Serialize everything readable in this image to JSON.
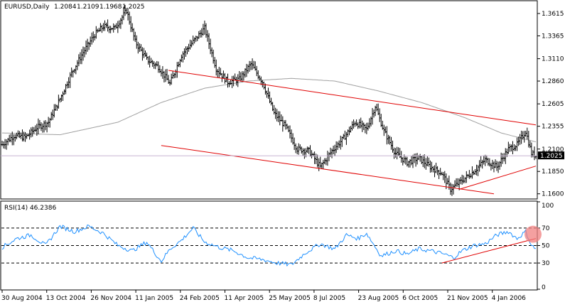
{
  "window": {
    "symbol_label": "EURUSD,Daily",
    "ohlc": [
      "1.2084",
      "1.2109",
      "1.1968",
      "1.2025"
    ],
    "current_price_label": "1.2025"
  },
  "colors": {
    "background": "#ffffff",
    "bars": "#000000",
    "moving_average": "#a0a0a0",
    "trendlines": "#e00000",
    "rsi_line": "#1e90ff",
    "highlight": "#f08080",
    "current_price_box": "#000000",
    "current_price_line": "#c8b4d2"
  },
  "price_panel": {
    "ylim": [
      1.155,
      1.375
    ],
    "tick_labels": [
      "1.3615",
      "1.3365",
      "1.3110",
      "1.2860",
      "1.2605",
      "1.2355",
      "1.2100",
      "1.1850",
      "1.1600"
    ]
  },
  "rsi_panel": {
    "title": "RSI(14) 46.2386",
    "ylim": [
      0,
      100
    ],
    "tick_labels": [
      "100",
      "70",
      "50",
      "30",
      "0"
    ],
    "levels": [
      70,
      50,
      30
    ]
  },
  "chart_data": {
    "type": "candlestick",
    "x_tick_labels": [
      "30 Aug 2004",
      "13 Oct 2004",
      "26 Nov 2004",
      "11 Jan 2005",
      "24 Feb 2005",
      "11 Apr 2005",
      "25 May 2005",
      "8 Jul 2005",
      "23 Aug 2005",
      "6 Oct 2005",
      "21 Nov 2005",
      "4 Jan 2006"
    ],
    "price_close_anchors": [
      [
        0,
        1.215
      ],
      [
        8,
        1.225
      ],
      [
        16,
        1.223
      ],
      [
        24,
        1.234
      ],
      [
        32,
        1.24
      ],
      [
        40,
        1.266
      ],
      [
        48,
        1.295
      ],
      [
        56,
        1.318
      ],
      [
        64,
        1.338
      ],
      [
        70,
        1.347
      ],
      [
        78,
        1.345
      ],
      [
        86,
        1.365
      ],
      [
        92,
        1.33
      ],
      [
        100,
        1.31
      ],
      [
        108,
        1.302
      ],
      [
        116,
        1.283
      ],
      [
        124,
        1.315
      ],
      [
        132,
        1.33
      ],
      [
        140,
        1.345
      ],
      [
        148,
        1.3
      ],
      [
        156,
        1.285
      ],
      [
        164,
        1.288
      ],
      [
        172,
        1.305
      ],
      [
        180,
        1.285
      ],
      [
        188,
        1.25
      ],
      [
        196,
        1.235
      ],
      [
        204,
        1.21
      ],
      [
        212,
        1.208
      ],
      [
        220,
        1.19
      ],
      [
        228,
        1.208
      ],
      [
        236,
        1.222
      ],
      [
        244,
        1.24
      ],
      [
        252,
        1.232
      ],
      [
        258,
        1.258
      ],
      [
        264,
        1.23
      ],
      [
        272,
        1.205
      ],
      [
        280,
        1.195
      ],
      [
        288,
        1.2
      ],
      [
        296,
        1.19
      ],
      [
        304,
        1.183
      ],
      [
        310,
        1.165
      ],
      [
        318,
        1.175
      ],
      [
        326,
        1.185
      ],
      [
        334,
        1.198
      ],
      [
        342,
        1.19
      ],
      [
        350,
        1.21
      ],
      [
        356,
        1.215
      ],
      [
        362,
        1.23
      ],
      [
        366,
        1.205
      ],
      [
        369,
        1.2025
      ]
    ],
    "moving_average_anchors": [
      [
        0,
        1.228
      ],
      [
        40,
        1.226
      ],
      [
        80,
        1.24
      ],
      [
        110,
        1.262
      ],
      [
        140,
        1.278
      ],
      [
        170,
        1.286
      ],
      [
        200,
        1.289
      ],
      [
        230,
        1.286
      ],
      [
        260,
        1.275
      ],
      [
        290,
        1.262
      ],
      [
        320,
        1.245
      ],
      [
        345,
        1.228
      ],
      [
        369,
        1.218
      ]
    ],
    "trendlines": [
      {
        "from": [
          115,
          1.298
        ],
        "to": [
          369,
          1.237
        ]
      },
      {
        "from": [
          110,
          1.214
        ],
        "to": [
          340,
          1.16
        ]
      },
      {
        "from": [
          316,
          1.165
        ],
        "to": [
          369,
          1.191
        ]
      }
    ],
    "rsi_anchors": [
      [
        0,
        48
      ],
      [
        10,
        58
      ],
      [
        20,
        62
      ],
      [
        30,
        50
      ],
      [
        40,
        72
      ],
      [
        50,
        66
      ],
      [
        60,
        72
      ],
      [
        70,
        64
      ],
      [
        80,
        50
      ],
      [
        90,
        44
      ],
      [
        100,
        54
      ],
      [
        110,
        32
      ],
      [
        116,
        46
      ],
      [
        124,
        56
      ],
      [
        132,
        70
      ],
      [
        140,
        54
      ],
      [
        150,
        48
      ],
      [
        160,
        44
      ],
      [
        170,
        36
      ],
      [
        180,
        34
      ],
      [
        190,
        30
      ],
      [
        200,
        28
      ],
      [
        210,
        42
      ],
      [
        220,
        52
      ],
      [
        230,
        46
      ],
      [
        238,
        62
      ],
      [
        246,
        58
      ],
      [
        252,
        64
      ],
      [
        262,
        38
      ],
      [
        272,
        44
      ],
      [
        280,
        40
      ],
      [
        288,
        46
      ],
      [
        296,
        44
      ],
      [
        306,
        40
      ],
      [
        312,
        36
      ],
      [
        318,
        44
      ],
      [
        326,
        50
      ],
      [
        334,
        52
      ],
      [
        342,
        62
      ],
      [
        350,
        66
      ],
      [
        356,
        58
      ],
      [
        362,
        66
      ],
      [
        366,
        50
      ],
      [
        369,
        46
      ]
    ],
    "rsi_trendline": {
      "from": [
        304,
        30
      ],
      "to": [
        369,
        58
      ]
    }
  }
}
